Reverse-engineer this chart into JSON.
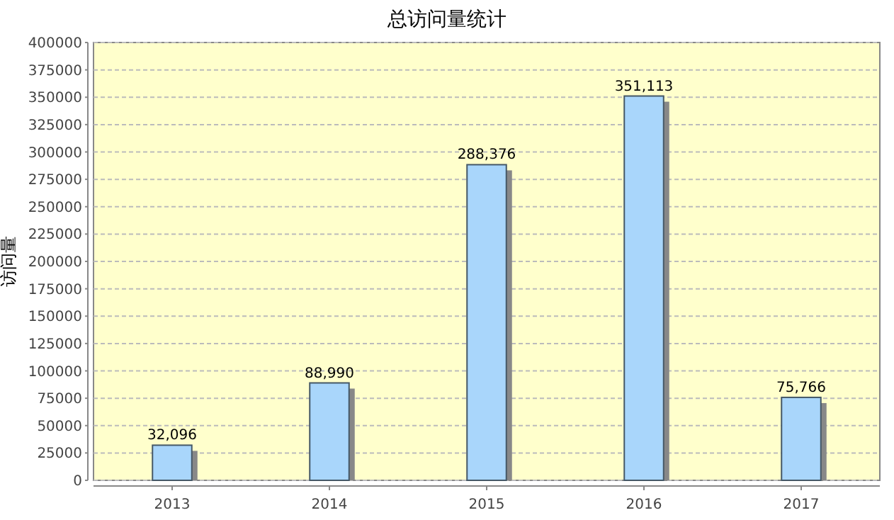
{
  "chart_data": {
    "type": "bar",
    "title": "总访问量统计",
    "ylabel": "访问量",
    "categories": [
      "2013",
      "2014",
      "2015",
      "2016",
      "2017"
    ],
    "values": [
      32096,
      88990,
      288376,
      351113,
      75766
    ],
    "value_labels": [
      "32,096",
      "88,990",
      "288,376",
      "351,113",
      "75,766"
    ],
    "color": "#a9d6fb",
    "ylim": [
      0,
      400000
    ],
    "yticks": [
      0,
      25000,
      50000,
      75000,
      100000,
      125000,
      150000,
      175000,
      200000,
      225000,
      250000,
      275000,
      300000,
      325000,
      350000,
      375000,
      400000
    ],
    "grid": "y"
  }
}
